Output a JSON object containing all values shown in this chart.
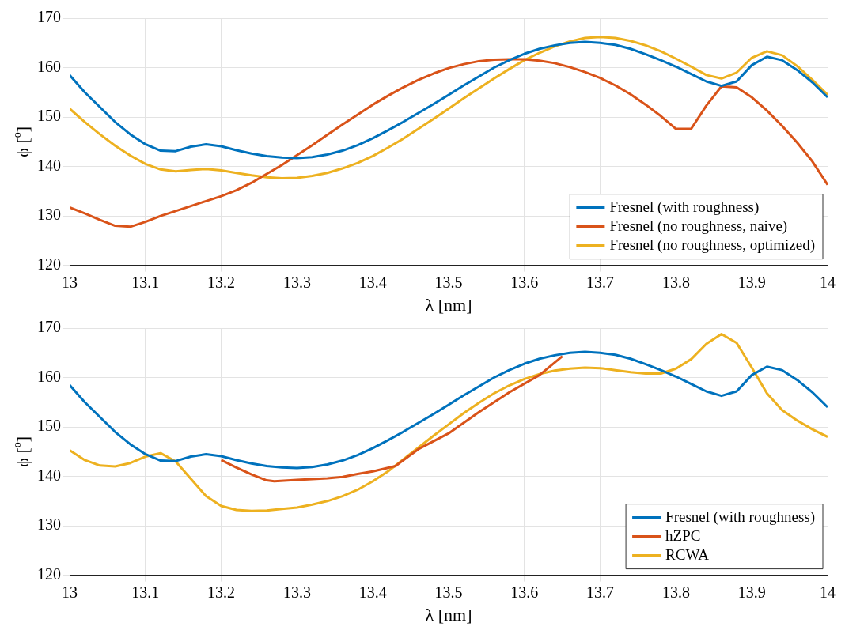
{
  "chart_data": [
    {
      "type": "line",
      "xlabel": "λ [nm]",
      "ylabel": "ϕ [$^{o}$]",
      "xlim": [
        13,
        14
      ],
      "ylim": [
        120,
        170
      ],
      "xticks": [
        13,
        13.1,
        13.2,
        13.3,
        13.4,
        13.5,
        13.6,
        13.7,
        13.8,
        13.9,
        14
      ],
      "yticks": [
        120,
        130,
        140,
        150,
        160,
        170
      ],
      "grid": true,
      "legend": "bottom right",
      "x": [
        13,
        13.02,
        13.04,
        13.06,
        13.08,
        13.1,
        13.12,
        13.14,
        13.16,
        13.18,
        13.2,
        13.22,
        13.24,
        13.26,
        13.28,
        13.3,
        13.32,
        13.34,
        13.36,
        13.38,
        13.4,
        13.42,
        13.44,
        13.46,
        13.48,
        13.5,
        13.52,
        13.54,
        13.56,
        13.58,
        13.6,
        13.62,
        13.64,
        13.66,
        13.68,
        13.7,
        13.72,
        13.74,
        13.76,
        13.78,
        13.8,
        13.82,
        13.84,
        13.86,
        13.88,
        13.9,
        13.92,
        13.94,
        13.96,
        13.98,
        14
      ],
      "series": [
        {
          "name": "Fresnel (with roughness)",
          "color": "#0072bd",
          "values": [
            158.5,
            155,
            152,
            149,
            146.5,
            144.5,
            143.2,
            143.1,
            144,
            144.5,
            144.1,
            143.3,
            142.6,
            142.1,
            141.8,
            141.7,
            141.9,
            142.4,
            143.2,
            144.3,
            145.7,
            147.3,
            149,
            150.8,
            152.6,
            154.5,
            156.4,
            158.2,
            160,
            161.5,
            162.8,
            163.8,
            164.5,
            165,
            165.2,
            165,
            164.6,
            163.8,
            162.7,
            161.5,
            160.2,
            158.7,
            157.2,
            156.3,
            157.2,
            160.5,
            162.2,
            161.5,
            159.5,
            157,
            154
          ]
        },
        {
          "name": "Fresnel (no roughness, naive)",
          "color": "#d95319",
          "values": [
            131.7,
            130.5,
            129.2,
            128,
            127.8,
            128.8,
            130,
            131,
            132,
            133,
            134,
            135.2,
            136.7,
            138.5,
            140.3,
            142.3,
            144.3,
            146.4,
            148.5,
            150.5,
            152.5,
            154.3,
            156,
            157.5,
            158.8,
            159.9,
            160.7,
            161.3,
            161.6,
            161.7,
            161.7,
            161.4,
            160.9,
            160.1,
            159.1,
            157.9,
            156.4,
            154.6,
            152.5,
            150.2,
            147.6,
            147.6,
            152.3,
            156.2,
            156,
            154,
            151.3,
            148.2,
            144.8,
            141,
            136.3
          ]
        },
        {
          "name": "Fresnel (no roughness, optimized)",
          "color": "#edb120",
          "values": [
            151.7,
            149,
            146.5,
            144.2,
            142.2,
            140.5,
            139.4,
            139,
            139.3,
            139.5,
            139.2,
            138.7,
            138.2,
            137.8,
            137.6,
            137.7,
            138.1,
            138.7,
            139.6,
            140.7,
            142.1,
            143.8,
            145.6,
            147.6,
            149.6,
            151.7,
            153.8,
            155.8,
            157.8,
            159.7,
            161.5,
            163,
            164.3,
            165.3,
            166,
            166.2,
            166,
            165.4,
            164.5,
            163.3,
            161.8,
            160.2,
            158.5,
            157.8,
            159,
            162,
            163.3,
            162.5,
            160.3,
            157.5,
            154.5
          ]
        }
      ]
    },
    {
      "type": "line",
      "xlabel": "λ [nm]",
      "ylabel": "ϕ [$^{o}$]",
      "xlim": [
        13,
        14
      ],
      "ylim": [
        120,
        170
      ],
      "xticks": [
        13,
        13.1,
        13.2,
        13.3,
        13.4,
        13.5,
        13.6,
        13.7,
        13.8,
        13.9,
        14
      ],
      "yticks": [
        120,
        130,
        140,
        150,
        160,
        170
      ],
      "grid": true,
      "legend": "bottom right",
      "x": [
        13,
        13.02,
        13.04,
        13.06,
        13.08,
        13.1,
        13.12,
        13.14,
        13.16,
        13.18,
        13.2,
        13.22,
        13.24,
        13.26,
        13.28,
        13.3,
        13.32,
        13.34,
        13.36,
        13.38,
        13.4,
        13.42,
        13.44,
        13.46,
        13.48,
        13.5,
        13.52,
        13.54,
        13.56,
        13.58,
        13.6,
        13.62,
        13.64,
        13.66,
        13.68,
        13.7,
        13.72,
        13.74,
        13.76,
        13.78,
        13.8,
        13.82,
        13.84,
        13.86,
        13.88,
        13.9,
        13.92,
        13.94,
        13.96,
        13.98,
        14
      ],
      "series": [
        {
          "name": "Fresnel (with roughness)",
          "color": "#0072bd",
          "values": [
            158.5,
            155,
            152,
            149,
            146.5,
            144.5,
            143.2,
            143.1,
            144,
            144.5,
            144.1,
            143.3,
            142.6,
            142.1,
            141.8,
            141.7,
            141.9,
            142.4,
            143.2,
            144.3,
            145.7,
            147.3,
            149,
            150.8,
            152.6,
            154.5,
            156.4,
            158.2,
            160,
            161.5,
            162.8,
            163.8,
            164.5,
            165,
            165.2,
            165,
            164.6,
            163.8,
            162.7,
            161.5,
            160.2,
            158.7,
            157.2,
            156.3,
            157.2,
            160.5,
            162.2,
            161.5,
            159.5,
            157,
            154
          ]
        },
        {
          "name": "hZPC",
          "color": "#d95319",
          "x": [
            13.2,
            13.22,
            13.24,
            13.26,
            13.27,
            13.3,
            13.34,
            13.36,
            13.38,
            13.4,
            13.43,
            13.46,
            13.5,
            13.54,
            13.58,
            13.62,
            13.65
          ],
          "values": [
            143.3,
            141.8,
            140.4,
            139.2,
            139,
            139.3,
            139.6,
            139.9,
            140.5,
            141,
            142.1,
            145.5,
            148.7,
            153,
            157,
            160.5,
            164.3
          ]
        },
        {
          "name": "RCWA",
          "color": "#edb120",
          "values": [
            145.3,
            143.3,
            142.2,
            142,
            142.7,
            144,
            144.7,
            143,
            139.5,
            136,
            134,
            133.2,
            133,
            133.1,
            133.4,
            133.7,
            134.3,
            135,
            136,
            137.3,
            139,
            141,
            143.4,
            145.8,
            148.2,
            150.5,
            152.8,
            154.9,
            156.8,
            158.4,
            159.7,
            160.7,
            161.4,
            161.8,
            162,
            161.9,
            161.5,
            161.1,
            160.8,
            160.8,
            161.8,
            163.7,
            166.8,
            168.8,
            167,
            162,
            156.8,
            153.4,
            151.3,
            149.5,
            148
          ]
        }
      ]
    }
  ]
}
